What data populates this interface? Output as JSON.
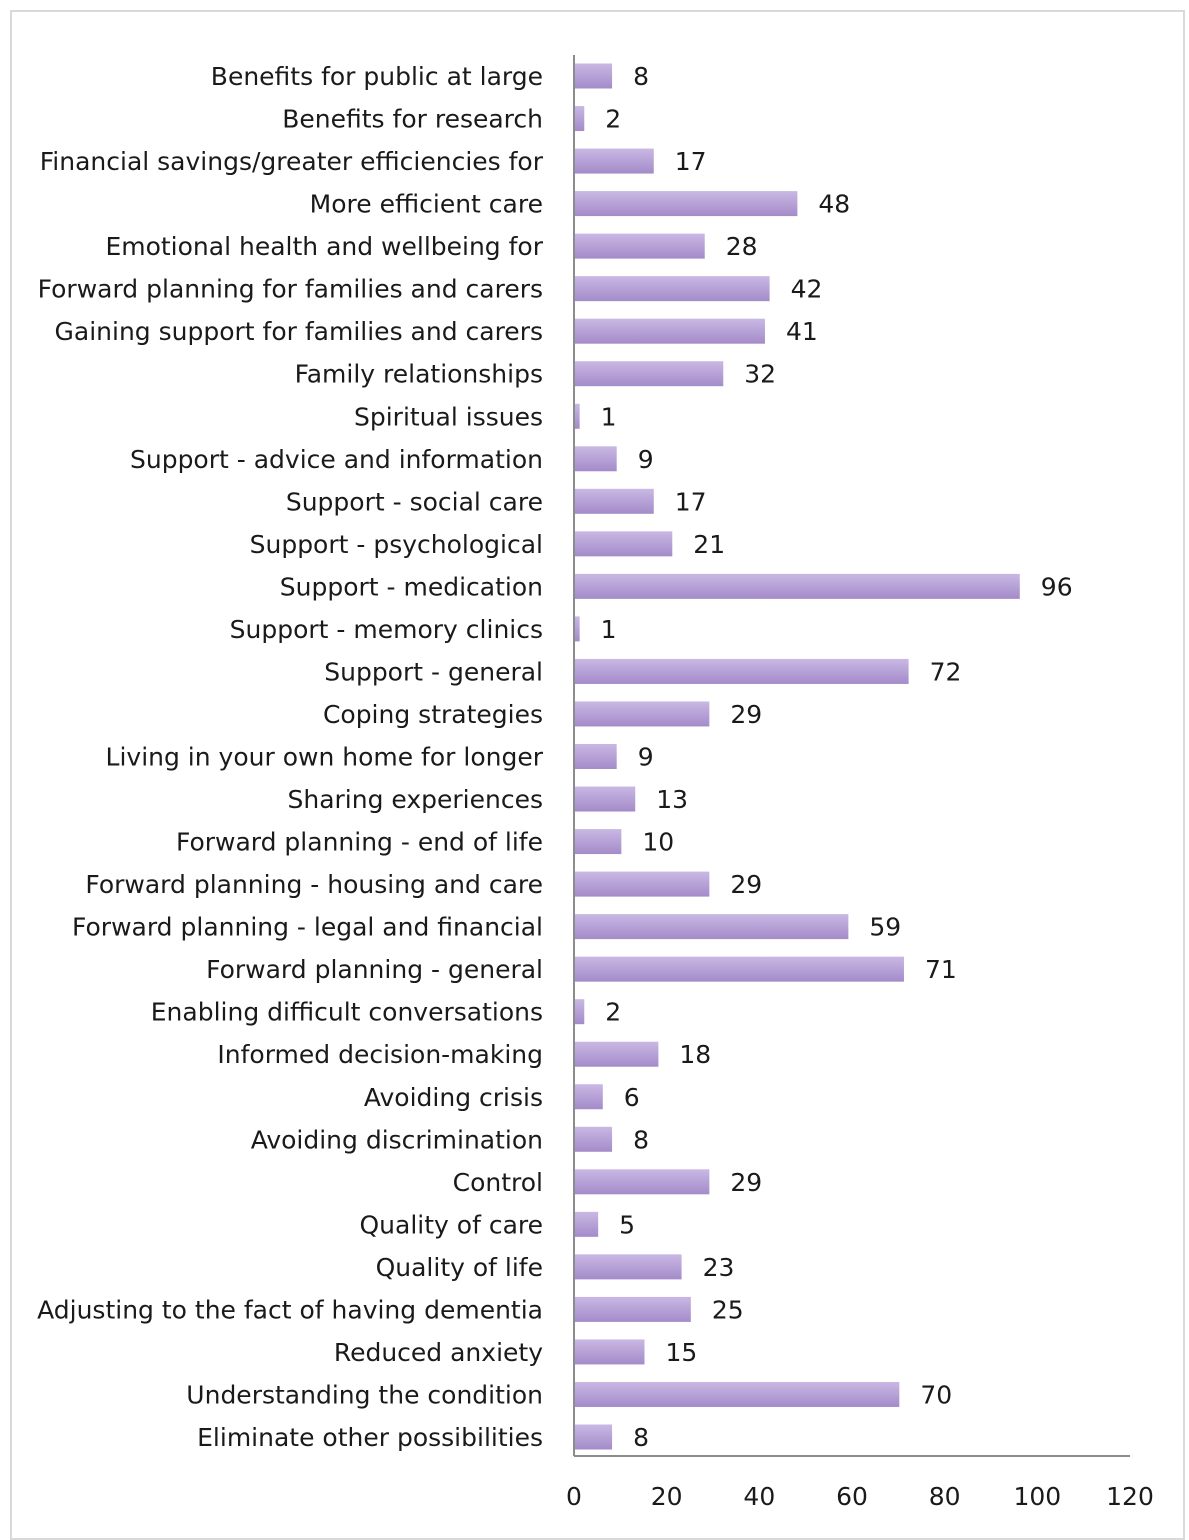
{
  "chart_data": {
    "type": "bar",
    "orientation": "horizontal",
    "categories": [
      "Benefits for public at large",
      "Benefits for research",
      "Financial savings/greater efficiencies for",
      "More efficient care",
      "Emotional health and wellbeing for",
      "Forward planning for families and carers",
      "Gaining support for families and carers",
      "Family relationships",
      "Spiritual issues",
      "Support - advice and information",
      "Support - social care",
      "Support - psychological",
      "Support - medication",
      "Support - memory clinics",
      "Support - general",
      "Coping strategies",
      "Living in your own home for longer",
      "Sharing experiences",
      "Forward planning - end of life",
      "Forward planning - housing and care",
      "Forward planning - legal and financial",
      "Forward planning - general",
      "Enabling difficult conversations",
      "Informed decision-making",
      "Avoiding crisis",
      "Avoiding discrimination",
      "Control",
      "Quality of care",
      "Quality of life",
      "Adjusting to the fact of having dementia",
      "Reduced anxiety",
      "Understanding the condition",
      "Eliminate other possibilities"
    ],
    "values": [
      8,
      2,
      17,
      48,
      28,
      42,
      41,
      32,
      1,
      9,
      17,
      21,
      96,
      1,
      72,
      29,
      9,
      13,
      10,
      29,
      59,
      71,
      2,
      18,
      6,
      8,
      29,
      5,
      23,
      25,
      15,
      70,
      8
    ],
    "xlim": [
      0,
      120
    ],
    "xticks": [
      0,
      20,
      40,
      60,
      80,
      100,
      120
    ],
    "title": "",
    "xlabel": "",
    "ylabel": "",
    "bar_color": "#a48bc9",
    "bar_color_light": "#c9b8e4",
    "grid": false,
    "legend": "none"
  }
}
